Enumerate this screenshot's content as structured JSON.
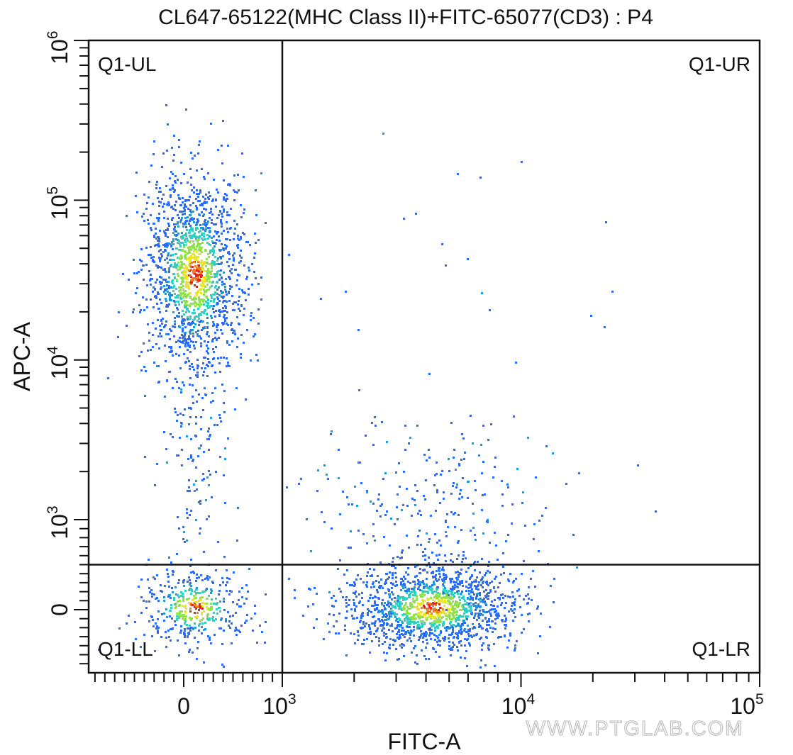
{
  "chart_data": {
    "type": "scatter",
    "title": "CL647-65122(MHC Class II)+FITC-65077(CD3) : P4",
    "xlabel": "FITC-A",
    "ylabel": "APC-A",
    "x_ticks": [
      {
        "value": 0,
        "base": "0",
        "exp": ""
      },
      {
        "value": 1000,
        "base": "10",
        "exp": "3"
      },
      {
        "value": 10000,
        "base": "10",
        "exp": "4"
      },
      {
        "value": 100000,
        "base": "10",
        "exp": "5"
      }
    ],
    "y_ticks": [
      {
        "value": 0,
        "base": "0",
        "exp": ""
      },
      {
        "value": 1000,
        "base": "10",
        "exp": "3"
      },
      {
        "value": 10000,
        "base": "10",
        "exp": "4"
      },
      {
        "value": 100000,
        "base": "10",
        "exp": "5"
      },
      {
        "value": 1000000,
        "base": "10",
        "exp": "6"
      }
    ],
    "gates": {
      "x": 1000,
      "y": 500
    },
    "quadrants": {
      "ul": "Q1-UL",
      "ur": "Q1-UR",
      "ll": "Q1-LL",
      "lr": "Q1-LR"
    },
    "populations": [
      {
        "center_x": 100,
        "center_y": 35000,
        "count": 1600
      },
      {
        "center_x": 4200,
        "center_y": 30,
        "count": 1500
      },
      {
        "center_x": 100,
        "center_y": 30,
        "count": 420
      },
      {
        "center_x": 100,
        "center_y": 2500,
        "count": 120
      },
      {
        "center_x": 4000,
        "center_y": 1200,
        "count": 260
      },
      {
        "center_x": 4500,
        "center_y": 30000,
        "count": 25
      }
    ],
    "colors": [
      "#2b6bf5",
      "#1e9ad6",
      "#2ed0c2",
      "#8fe34a",
      "#e8e52a",
      "#f37a1e",
      "#e52020"
    ]
  },
  "watermark": "WWW.PTGLAB.COM"
}
